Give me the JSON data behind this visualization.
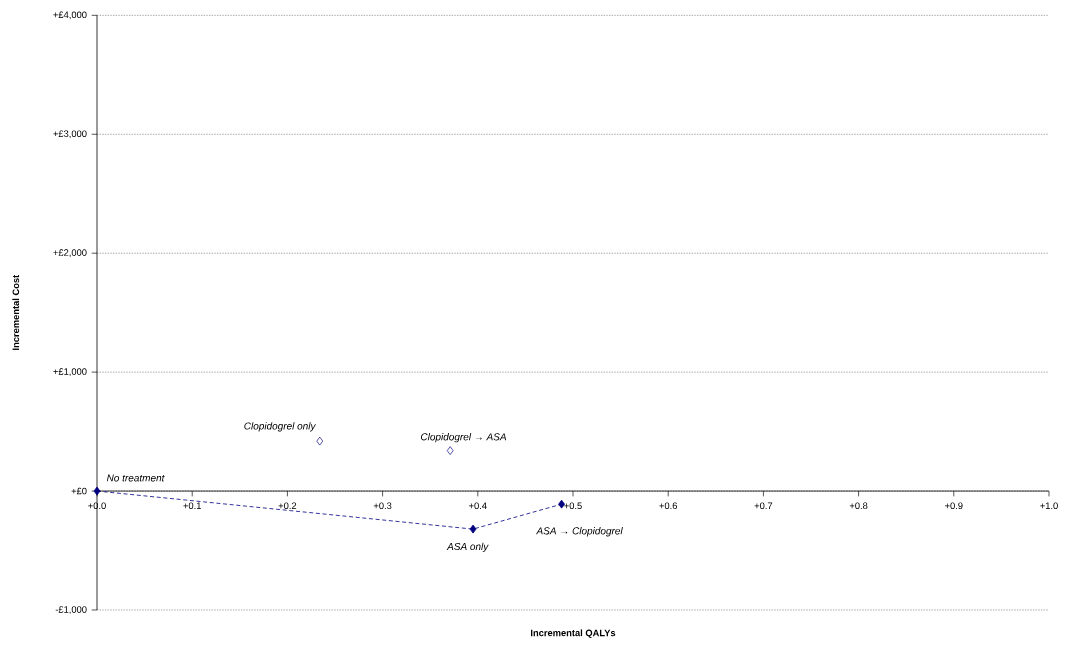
{
  "chart_data": {
    "type": "scatter",
    "xlabel": "Incremental QALYs",
    "ylabel": "Incremental Cost",
    "xlim": [
      0,
      1.0
    ],
    "ylim": [
      -1000,
      4000
    ],
    "xticks": [
      {
        "value": 0,
        "label": "+0.0"
      },
      {
        "value": 0.1,
        "label": "+0.1"
      },
      {
        "value": 0.2,
        "label": "+0.2"
      },
      {
        "value": 0.3,
        "label": "+0.3"
      },
      {
        "value": 0.4,
        "label": "+0.4"
      },
      {
        "value": 0.5,
        "label": "+0.5"
      },
      {
        "value": 0.6,
        "label": "+0.6"
      },
      {
        "value": 0.7,
        "label": "+0.7"
      },
      {
        "value": 0.8,
        "label": "+0.8"
      },
      {
        "value": 0.9,
        "label": "+0.9"
      },
      {
        "value": 1.0,
        "label": "+1.0"
      }
    ],
    "yticks": [
      {
        "value": -1000,
        "label": "-£1,000"
      },
      {
        "value": 0,
        "label": "+£0"
      },
      {
        "value": 1000,
        "label": "+£1,000"
      },
      {
        "value": 2000,
        "label": "+£2,000"
      },
      {
        "value": 3000,
        "label": "+£3,000"
      },
      {
        "value": 4000,
        "label": "+£4,000"
      }
    ],
    "grid": "y",
    "series": [
      {
        "type": "line",
        "color": "#000080",
        "marker": "diamond",
        "line_style": "dashed",
        "x": [
          0,
          0.395,
          0.488
        ],
        "values": [
          0,
          -320,
          -110
        ]
      },
      {
        "color": "#000080",
        "marker": "diamond",
        "x": [
          0.234,
          0.371
        ],
        "values": [
          420,
          340
        ]
      }
    ],
    "annotations": [
      {
        "text": "No treatment",
        "x": 0,
        "y": 0
      },
      {
        "text": "Clopidogrel  only",
        "x": 0.234,
        "y": 420
      },
      {
        "text": "Clopidogrel → ASA",
        "x": 0.371,
        "y": 340
      },
      {
        "text": "ASA only",
        "x": 0.395,
        "y": -320
      },
      {
        "text": "ASA → Clopidogrel",
        "x": 0.488,
        "y": -110
      }
    ]
  }
}
